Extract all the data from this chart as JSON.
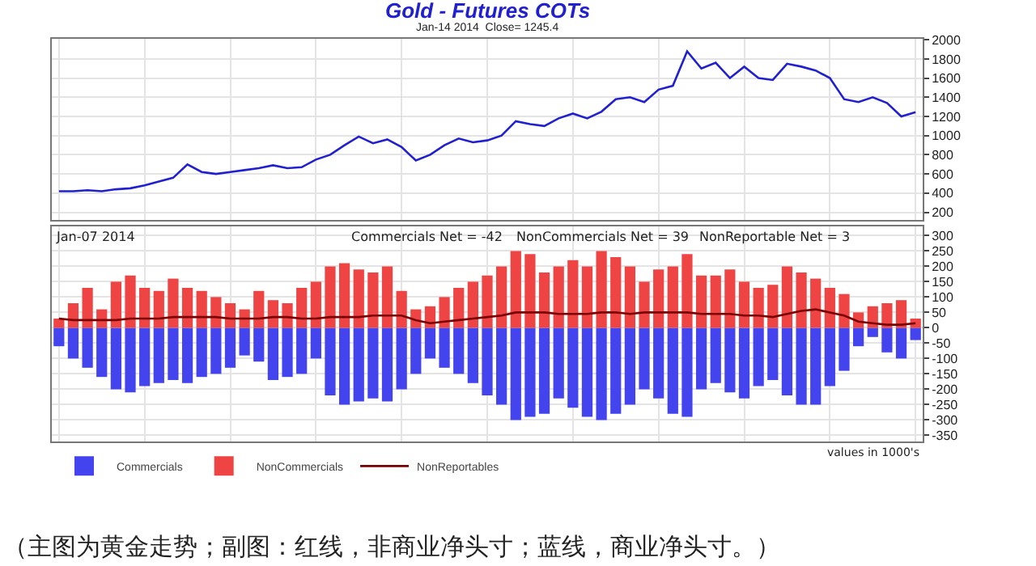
{
  "chart_data": [
    {
      "type": "line",
      "title": "Gold - Futures COTs",
      "subtitle": "Jan-14 2014  Close= 1245.4",
      "categories": [
        null,
        null,
        null,
        null,
        null,
        null,
        null,
        null,
        null,
        null,
        null,
        null,
        null,
        null,
        null,
        null,
        null,
        null,
        null,
        null,
        null,
        null,
        null,
        null,
        null,
        null,
        null,
        null,
        null,
        null,
        null,
        null,
        null,
        null,
        null,
        null,
        null,
        null,
        null,
        null,
        null,
        null,
        null,
        null,
        null,
        null,
        null,
        null,
        null,
        null,
        null,
        null,
        null,
        null,
        null,
        null,
        null,
        null,
        null,
        null,
        null
      ],
      "series": [
        {
          "color": "#2020d0",
          "values": [
            420,
            420,
            430,
            420,
            440,
            450,
            480,
            520,
            560,
            700,
            620,
            600,
            620,
            640,
            660,
            690,
            660,
            670,
            750,
            800,
            900,
            990,
            920,
            960,
            880,
            740,
            800,
            900,
            970,
            930,
            950,
            1000,
            1150,
            1120,
            1100,
            1180,
            1230,
            1180,
            1250,
            1380,
            1400,
            1350,
            1480,
            1520,
            1880,
            1700,
            1760,
            1600,
            1720,
            1600,
            1580,
            1750,
            1720,
            1680,
            1600,
            1380,
            1350,
            1400,
            1340,
            1200,
            1245
          ]
        }
      ],
      "ylim": [
        120,
        2010
      ],
      "yticks": [
        200,
        400,
        600,
        800,
        1000,
        1200,
        1400,
        1600,
        1800,
        2000
      ],
      "grid": true,
      "legend": false
    },
    {
      "type": "bar",
      "stacked": true,
      "categories": [
        null,
        null,
        null,
        null,
        null,
        null,
        null,
        null,
        null,
        null,
        null,
        null,
        null,
        null,
        null,
        null,
        null,
        null,
        null,
        null,
        null,
        null,
        null,
        null,
        null,
        null,
        null,
        null,
        null,
        null,
        null,
        null,
        null,
        null,
        null,
        null,
        null,
        null,
        null,
        null,
        null,
        null,
        null,
        null,
        null,
        null,
        null,
        null,
        null,
        null,
        null,
        null,
        null,
        null,
        null,
        null,
        null,
        null,
        null,
        null,
        null
      ],
      "series": [
        {
          "name": "Commercials",
          "color": "#4444ee",
          "values": [
            -60,
            -100,
            -130,
            -160,
            -200,
            -210,
            -190,
            -180,
            -170,
            -180,
            -160,
            -150,
            -130,
            -90,
            -110,
            -170,
            -160,
            -150,
            -100,
            -220,
            -250,
            -240,
            -230,
            -240,
            -200,
            -150,
            -100,
            -130,
            -150,
            -180,
            -220,
            -250,
            -300,
            -290,
            -280,
            -230,
            -260,
            -290,
            -300,
            -280,
            -250,
            -200,
            -230,
            -280,
            -290,
            -200,
            -180,
            -210,
            -230,
            -190,
            -170,
            -220,
            -250,
            -250,
            -190,
            -140,
            -60,
            -30,
            -80,
            -100,
            -40
          ]
        },
        {
          "name": "NonCommercials",
          "color": "#ee4444",
          "values": [
            30,
            80,
            130,
            60,
            150,
            170,
            130,
            120,
            160,
            130,
            120,
            100,
            80,
            60,
            120,
            90,
            80,
            130,
            150,
            200,
            210,
            190,
            180,
            200,
            120,
            60,
            70,
            100,
            130,
            150,
            170,
            200,
            250,
            240,
            180,
            200,
            220,
            200,
            250,
            230,
            200,
            150,
            190,
            200,
            240,
            170,
            170,
            190,
            150,
            130,
            140,
            200,
            180,
            160,
            130,
            110,
            50,
            70,
            80,
            90,
            30
          ]
        },
        {
          "name": "NonReportables",
          "type": "line",
          "color": "#7a0000",
          "values": [
            30,
            25,
            25,
            25,
            25,
            30,
            30,
            30,
            35,
            35,
            35,
            35,
            30,
            30,
            30,
            35,
            35,
            30,
            30,
            35,
            35,
            35,
            40,
            40,
            40,
            25,
            15,
            20,
            25,
            30,
            35,
            40,
            50,
            50,
            50,
            45,
            45,
            45,
            50,
            50,
            45,
            50,
            50,
            50,
            50,
            45,
            45,
            45,
            40,
            40,
            35,
            45,
            55,
            60,
            50,
            40,
            20,
            15,
            10,
            10,
            15
          ]
        }
      ],
      "ylim": [
        -370,
        330
      ],
      "yticks": [
        -350,
        -300,
        -250,
        -200,
        -150,
        -100,
        -50,
        0,
        50,
        100,
        150,
        200,
        250,
        300
      ],
      "grid": true,
      "legend": "bottom left",
      "annotations": [
        "Jan-07 2014",
        "Commercials Net = -42",
        "NonCommercials Net = 39",
        "NonReportable Net = 3",
        "values in 1000's",
        "（主图为黄金走势；副图：红线，非商业净头寸；蓝线，商业净头寸。）"
      ]
    }
  ]
}
